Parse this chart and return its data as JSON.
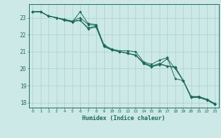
{
  "xlabel": "Humidex (Indice chaleur)",
  "xlim": [
    -0.5,
    23.5
  ],
  "ylim": [
    17.7,
    23.8
  ],
  "bg_color": "#cce9e8",
  "grid_color": "#aacfce",
  "line_color": "#1a6b5a",
  "xticks": [
    0,
    1,
    2,
    3,
    4,
    5,
    6,
    7,
    8,
    9,
    10,
    11,
    12,
    13,
    14,
    15,
    16,
    17,
    18,
    19,
    20,
    21,
    22,
    23
  ],
  "yticks": [
    18,
    19,
    20,
    21,
    22,
    23
  ],
  "series": [
    [
      23.35,
      23.35,
      23.1,
      23.0,
      22.85,
      22.75,
      23.35,
      22.65,
      22.6,
      21.4,
      21.15,
      21.05,
      21.05,
      21.0,
      20.4,
      20.25,
      20.5,
      20.65,
      19.4,
      19.3,
      18.35,
      18.35,
      18.2,
      17.95
    ],
    [
      23.35,
      23.35,
      23.1,
      23.0,
      22.9,
      22.8,
      23.0,
      22.6,
      22.55,
      21.3,
      21.1,
      21.0,
      20.9,
      20.8,
      20.35,
      20.15,
      20.3,
      20.15,
      20.1,
      19.3,
      18.35,
      18.35,
      18.15,
      17.9
    ],
    [
      23.35,
      23.35,
      23.1,
      23.0,
      22.9,
      22.8,
      22.85,
      22.4,
      22.5,
      21.3,
      21.1,
      21.0,
      20.9,
      20.8,
      20.3,
      20.1,
      20.25,
      20.15,
      20.05,
      19.3,
      18.3,
      18.3,
      18.15,
      17.9
    ],
    [
      23.35,
      23.35,
      23.1,
      23.0,
      22.85,
      22.75,
      22.85,
      22.35,
      22.45,
      21.35,
      21.1,
      21.0,
      20.9,
      20.78,
      20.32,
      20.12,
      20.22,
      20.6,
      20.0,
      19.3,
      18.3,
      18.3,
      18.15,
      17.9
    ]
  ]
}
